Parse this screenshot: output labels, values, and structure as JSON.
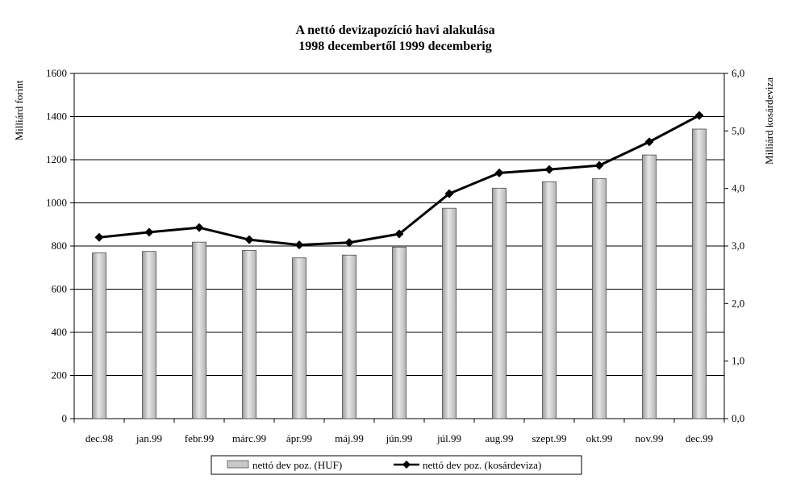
{
  "chart_data": {
    "type": "bar+line",
    "title": "A nettó devizapozíció havi alakulása",
    "subtitle": "1998  decembertől 1999  decemberig",
    "ylabel_left": "Milliárd forint",
    "ylabel_right": "Milliárd kosárdeviza",
    "categories": [
      "dec.98",
      "jan.99",
      "febr.99",
      "márc.99",
      "ápr.99",
      "máj.99",
      "jún.99",
      "júl.99",
      "aug.99",
      "szept.99",
      "okt.99",
      "nov.99",
      "dec.99"
    ],
    "ylim_left": [
      0,
      1600
    ],
    "yticks_left": [
      "0",
      "200",
      "400",
      "600",
      "800",
      "1000",
      "1200",
      "1400",
      "1600"
    ],
    "ylim_right": [
      0,
      6
    ],
    "yticks_right": [
      "0,0",
      "1,0",
      "2,0",
      "3,0",
      "4,0",
      "5,0",
      "6,0"
    ],
    "series": [
      {
        "name": "nettó dev poz. (HUF)",
        "type": "bar",
        "axis": "left",
        "color": "#c8c8c8",
        "values": [
          768,
          775,
          818,
          780,
          745,
          758,
          795,
          975,
          1068,
          1098,
          1112,
          1222,
          1342
        ]
      },
      {
        "name": "nettó dev poz. (kosárdeviza)",
        "type": "line",
        "axis": "right",
        "color": "#000000",
        "marker": "diamond",
        "values": [
          3.15,
          3.24,
          3.32,
          3.11,
          3.02,
          3.06,
          3.21,
          3.91,
          4.27,
          4.33,
          4.4,
          4.81,
          5.27
        ]
      }
    ],
    "grid": "horizontal",
    "legend_position": "bottom"
  }
}
